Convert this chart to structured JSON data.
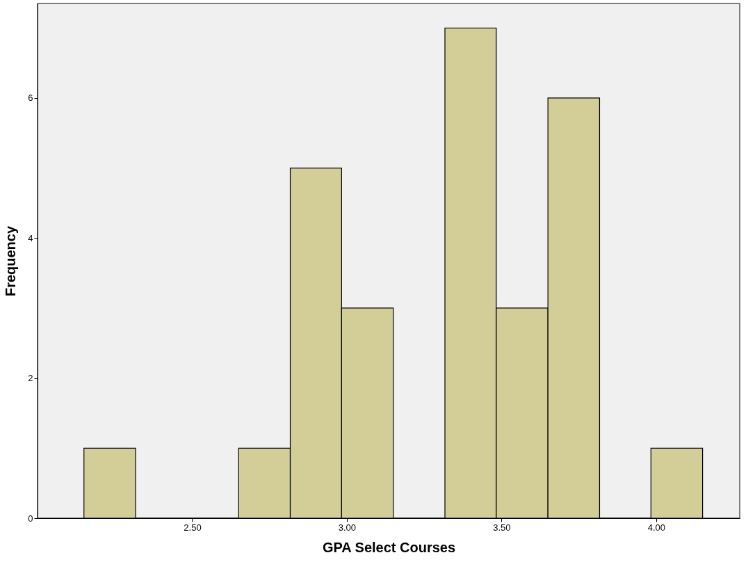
{
  "chart_data": {
    "type": "histogram",
    "xlabel": "GPA Select Courses",
    "ylabel": "Frequency",
    "bins": [
      2.15,
      2.317,
      2.483,
      2.65,
      2.817,
      2.983,
      3.15,
      3.317,
      3.483,
      3.65,
      3.817,
      3.983,
      4.15
    ],
    "values": [
      1,
      0,
      0,
      1,
      5,
      3,
      0,
      7,
      3,
      6,
      0,
      1
    ],
    "color": "#d3ce97",
    "xlim": [
      2.0,
      4.27
    ],
    "ylim": [
      0,
      7.35
    ],
    "xticks": [
      {
        "value": 2.5,
        "label": "2.50"
      },
      {
        "value": 3.0,
        "label": "3.00"
      },
      {
        "value": 3.5,
        "label": "3.50"
      },
      {
        "value": 4.0,
        "label": "4.00"
      }
    ],
    "yticks": [
      0,
      2,
      4,
      6
    ],
    "grid": false
  }
}
